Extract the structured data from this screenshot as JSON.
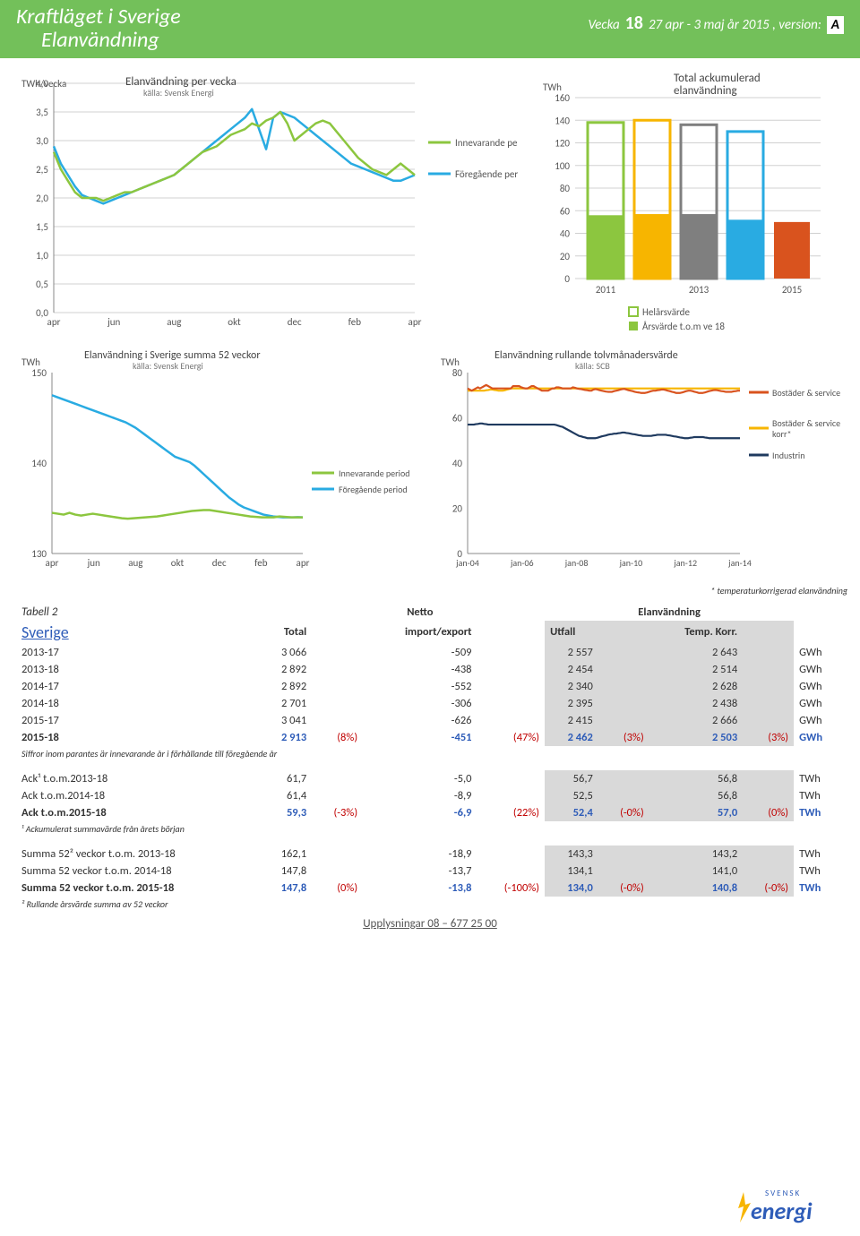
{
  "header": {
    "title": "Kraftläget i Sverige",
    "subtitle": "Elanvändning",
    "vecka_label": "Vecka",
    "week": "18",
    "period": "27 apr - 3 maj år 2015 , version:",
    "version": "A"
  },
  "chart1": {
    "title": "Elanvändning per vecka",
    "source": "källa: Svensk Energi",
    "ylabel": "TWh/vecka",
    "ymin": 0,
    "ymax": 4.0,
    "ystep": 0.5,
    "xticks": [
      "apr",
      "jun",
      "aug",
      "okt",
      "dec",
      "feb",
      "apr"
    ],
    "colors": {
      "current": "#8cc63f",
      "previous": "#29abe2",
      "grid": "#d0d0d0"
    },
    "legend": {
      "a": "Innevarande period",
      "b": "Föregående period"
    },
    "current": [
      2.8,
      2.5,
      2.3,
      2.1,
      2.0,
      2.0,
      2.0,
      1.95,
      2.0,
      2.05,
      2.1,
      2.1,
      2.15,
      2.2,
      2.25,
      2.3,
      2.35,
      2.4,
      2.5,
      2.6,
      2.7,
      2.8,
      2.85,
      2.9,
      3.0,
      3.1,
      3.15,
      3.2,
      3.3,
      3.25,
      3.35,
      3.4,
      3.5,
      3.3,
      3.0,
      3.1,
      3.2,
      3.3,
      3.35,
      3.3,
      3.15,
      3.0,
      2.85,
      2.7,
      2.6,
      2.5,
      2.45,
      2.4,
      2.5,
      2.6,
      2.5,
      2.4
    ],
    "previous": [
      2.9,
      2.6,
      2.4,
      2.2,
      2.05,
      2.0,
      1.95,
      1.9,
      1.95,
      2.0,
      2.05,
      2.1,
      2.15,
      2.2,
      2.25,
      2.3,
      2.35,
      2.4,
      2.5,
      2.6,
      2.7,
      2.8,
      2.9,
      3.0,
      3.1,
      3.2,
      3.3,
      3.4,
      3.55,
      3.2,
      2.85,
      3.4,
      3.5,
      3.45,
      3.4,
      3.3,
      3.2,
      3.1,
      3.0,
      2.9,
      2.8,
      2.7,
      2.6,
      2.55,
      2.5,
      2.45,
      2.4,
      2.35,
      2.3,
      2.3,
      2.35,
      2.4
    ]
  },
  "chart2": {
    "title": "Total ackumulerad elanvändning",
    "ylabel": "TWh",
    "ymin": 0,
    "ymax": 160,
    "ystep": 20,
    "xticks": [
      "2011",
      "2013",
      "2015"
    ],
    "colors": {
      "grid": "#d0d0d0"
    },
    "bars": [
      {
        "x": 0,
        "full": 138,
        "fill": 56,
        "color": "#8cc63f"
      },
      {
        "x": 1,
        "full": 140,
        "fill": 57,
        "color": "#f7b500"
      },
      {
        "x": 2,
        "full": 136,
        "fill": 57,
        "color": "#7f7f7f"
      },
      {
        "x": 3,
        "full": 130,
        "fill": 52,
        "color": "#29abe2"
      },
      {
        "x": 4,
        "full": 0,
        "fill": 50,
        "color": "#d9531e"
      }
    ],
    "legend": {
      "a": "Helårsvärde",
      "b": "Årsvärde t.o.m ve 18"
    }
  },
  "chart3": {
    "title": "Elanvändning i Sverige summa 52 veckor",
    "source": "källa: Svensk Energi",
    "ylabel": "TWh",
    "ymin": 130,
    "ymax": 150,
    "ystep": 10,
    "xticks": [
      "apr",
      "jun",
      "aug",
      "okt",
      "dec",
      "feb",
      "apr"
    ],
    "colors": {
      "current": "#8cc63f",
      "previous": "#29abe2"
    },
    "legend": {
      "a": "Innevarande period",
      "b": "Föregående period"
    },
    "current": [
      134.5,
      134.4,
      134.3,
      134.5,
      134.3,
      134.2,
      134.3,
      134.4,
      134.3,
      134.2,
      134.1,
      134.0,
      133.9,
      133.85,
      133.9,
      133.95,
      134.0,
      134.05,
      134.1,
      134.2,
      134.3,
      134.4,
      134.5,
      134.6,
      134.7,
      134.75,
      134.8,
      134.8,
      134.7,
      134.6,
      134.5,
      134.4,
      134.3,
      134.2,
      134.1,
      134.05,
      134.0,
      134.0,
      134.0,
      134.1,
      134.05,
      134.0,
      134.0,
      134.0
    ],
    "previous": [
      147.5,
      147.3,
      147.1,
      146.9,
      146.7,
      146.5,
      146.3,
      146.1,
      145.9,
      145.7,
      145.5,
      145.3,
      145.1,
      144.9,
      144.7,
      144.5,
      144.2,
      143.9,
      143.5,
      143.1,
      142.7,
      142.3,
      141.9,
      141.5,
      141.1,
      140.7,
      140.5,
      140.3,
      140.1,
      139.7,
      139.2,
      138.7,
      138.2,
      137.7,
      137.2,
      136.7,
      136.2,
      135.8,
      135.4,
      135.1,
      134.9,
      134.7,
      134.5,
      134.3,
      134.2,
      134.1,
      134.05,
      134.0,
      134.0,
      134.0,
      134.02,
      134.0
    ]
  },
  "chart4": {
    "title": "Elanvändning rullande tolvmånadersvärde",
    "source": "källa: SCB",
    "ylabel": "TWh",
    "ymin": 0,
    "ymax": 80,
    "ystep": 20,
    "xticks": [
      "jan-04",
      "jan-06",
      "jan-08",
      "jan-10",
      "jan-12",
      "jan-14"
    ],
    "colors": {
      "a": "#d9531e",
      "b": "#f7b500",
      "c": "#1f3a5f"
    },
    "legend": {
      "a": "Bostäder & service",
      "b": "Bostäder & service korr*",
      "c": "Industrin"
    },
    "series_a": [
      73,
      72.5,
      72,
      72.5,
      73,
      73.5,
      73,
      73.5,
      74,
      74.5,
      74,
      73.5,
      73,
      73,
      73,
      73,
      73,
      73,
      73,
      73,
      73,
      73,
      74,
      74,
      74,
      74,
      73.5,
      73.2,
      73,
      73,
      73.5,
      74,
      74,
      73.5,
      73,
      72.5,
      72,
      72,
      72,
      72,
      72.5,
      73,
      73,
      73.5,
      73.5,
      73.3,
      73,
      73,
      73,
      73,
      73,
      73.5,
      73.3,
      73,
      72.8,
      72.7,
      72.5,
      72.3,
      72.2,
      72,
      72,
      72.5,
      72.7,
      72.5,
      72.2,
      72,
      71.8,
      71.6,
      71.5,
      71.5,
      71.5,
      71.8,
      72,
      72.2,
      72.5,
      72.7,
      72.8,
      72.5,
      72.2,
      72,
      71.8,
      71.5,
      71.3,
      71.2,
      71,
      71,
      71,
      71.2,
      71.5,
      71.8,
      72,
      72,
      72.2,
      72.3,
      72.5,
      72.5,
      72.3,
      72,
      71.8,
      71.5,
      71.3,
      71,
      71,
      71,
      71.2,
      71.5,
      71.8,
      72,
      72,
      71.8,
      71.5,
      71.3,
      71,
      71,
      71,
      71.2,
      71.5,
      71.8,
      72,
      72.2,
      72.3,
      72.2,
      72,
      71.8,
      71.7,
      71.5,
      71.5,
      71.5,
      71.5,
      71.7,
      71.8,
      72,
      72
    ],
    "series_b": [
      72,
      72,
      72,
      72,
      72,
      72,
      72,
      72,
      72,
      72.2,
      72.3,
      72.5,
      72.5,
      72.3,
      72.2,
      72,
      72,
      72,
      72.2,
      72.5,
      72.7,
      73,
      73,
      73,
      73,
      73,
      73,
      73,
      73,
      73,
      73,
      73,
      73,
      73,
      73,
      73,
      73,
      73,
      73,
      73,
      73,
      73,
      73,
      73,
      73,
      73,
      73,
      73,
      73,
      73,
      73,
      73,
      73,
      73,
      73,
      73,
      73,
      73,
      73,
      73,
      73,
      73,
      73,
      73,
      73,
      73,
      73,
      73,
      73,
      73,
      73,
      73,
      73,
      73,
      73,
      73,
      73,
      73,
      73,
      73,
      73,
      73,
      73,
      73,
      73,
      73,
      73,
      73,
      73,
      73,
      73,
      73,
      73,
      73,
      73,
      73,
      73,
      73,
      73,
      73,
      73,
      73,
      73,
      73,
      73,
      73,
      73,
      73,
      73,
      73,
      73,
      73,
      73,
      73,
      73,
      73,
      73,
      73,
      73,
      73,
      73,
      73,
      73,
      73,
      73,
      73,
      73,
      73,
      73,
      73,
      73,
      73,
      73
    ],
    "series_c": [
      57,
      57,
      57,
      57,
      57.2,
      57.3,
      57.5,
      57.5,
      57.3,
      57.2,
      57,
      57,
      57,
      57,
      57,
      57,
      57,
      57,
      57,
      57,
      57,
      57,
      57,
      57,
      57,
      57,
      57,
      57,
      57,
      57,
      57,
      57,
      57,
      57,
      57,
      57,
      57,
      57,
      57,
      57,
      57,
      57,
      57,
      56.8,
      56.5,
      56.2,
      56,
      55.5,
      55,
      54.5,
      54,
      53.5,
      53,
      52.5,
      52,
      51.8,
      51.5,
      51.3,
      51,
      51,
      51,
      51,
      51,
      51.2,
      51.5,
      51.8,
      52,
      52.2,
      52.5,
      52.7,
      52.8,
      53,
      53,
      53.2,
      53.3,
      53.5,
      53.5,
      53.3,
      53.2,
      53,
      52.8,
      52.7,
      52.5,
      52.3,
      52.2,
      52,
      52,
      52,
      52,
      52,
      52.2,
      52.3,
      52.5,
      52.5,
      52.5,
      52.5,
      52.5,
      52.3,
      52.2,
      52,
      51.8,
      51.7,
      51.5,
      51.3,
      51.2,
      51,
      51,
      51,
      51.2,
      51.3,
      51.5,
      51.5,
      51.5,
      51.5,
      51.5,
      51.3,
      51.2,
      51,
      51,
      51,
      51,
      51,
      51,
      51,
      51,
      51,
      51,
      51,
      51,
      51,
      51,
      51,
      51
    ],
    "footnote": "* temperaturkorrigerad elanvändning"
  },
  "table": {
    "label": "Tabell 2",
    "region": "Sverige",
    "h_total": "Total",
    "h_netto": "Netto",
    "h_ie": "import/export",
    "h_el": "Elanvändning",
    "h_ut": "Utfall",
    "h_tk": "Temp. Korr.",
    "rows": [
      {
        "l": "2013-17",
        "t": "3 066",
        "n": "-509",
        "u": "2 557",
        "k": "2 643",
        "un": "GWh"
      },
      {
        "l": "2013-18",
        "t": "2 892",
        "n": "-438",
        "u": "2 454",
        "k": "2 514",
        "un": "GWh"
      },
      {
        "l": "2014-17",
        "t": "2 892",
        "n": "-552",
        "u": "2 340",
        "k": "2 628",
        "un": "GWh"
      },
      {
        "l": "2014-18",
        "t": "2 701",
        "n": "-306",
        "u": "2 395",
        "k": "2 438",
        "un": "GWh"
      },
      {
        "l": "2015-17",
        "t": "3 041",
        "n": "-626",
        "u": "2 415",
        "k": "2 666",
        "un": "GWh"
      }
    ],
    "row_bold": {
      "l": "2015-18",
      "t": "2 913",
      "tp": "(8%)",
      "n": "-451",
      "np": "(47%)",
      "u": "2 462",
      "up": "(3%)",
      "k": "2 503",
      "kp": "(3%)",
      "un": "GWh"
    },
    "note1": "Siffror inom parantes är innevarande år i förhållande till föregående år",
    "ack": [
      {
        "l": "Ack¹ t.o.m.2013-18",
        "t": "61,7",
        "n": "-5,0",
        "u": "56,7",
        "k": "56,8",
        "un": "TWh"
      },
      {
        "l": "Ack t.o.m.2014-18",
        "t": "61,4",
        "n": "-8,9",
        "u": "52,5",
        "k": "56,8",
        "un": "TWh"
      }
    ],
    "ack_bold": {
      "l": "Ack t.o.m.2015-18",
      "t": "59,3",
      "tp": "(-3%)",
      "n": "-6,9",
      "np": "(22%)",
      "u": "52,4",
      "up": "(-0%)",
      "k": "57,0",
      "kp": "(0%)",
      "un": "TWh"
    },
    "note2": "¹ Ackumulerat summavärde från årets början",
    "s52": [
      {
        "l": "Summa 52² veckor t.o.m. 2013-18",
        "t": "162,1",
        "n": "-18,9",
        "u": "143,3",
        "k": "143,2",
        "un": "TWh"
      },
      {
        "l": "Summa 52 veckor t.o.m. 2014-18",
        "t": "147,8",
        "n": "-13,7",
        "u": "134,1",
        "k": "141,0",
        "un": "TWh"
      }
    ],
    "s52_bold": {
      "l": "Summa 52 veckor t.o.m. 2015-18",
      "t": "147,8",
      "tp": "(0%)",
      "n": "-13,8",
      "np": "(-100%)",
      "u": "134,0",
      "up": "(-0%)",
      "k": "140,8",
      "kp": "(-0%)",
      "un": "TWh"
    },
    "note3": "² Rullande årsvärde summa av 52 veckor"
  },
  "footer": {
    "text": "Upplysningar 08 – 677 25 00",
    "logo_top": "SVENSK",
    "logo_bot": "energi"
  }
}
